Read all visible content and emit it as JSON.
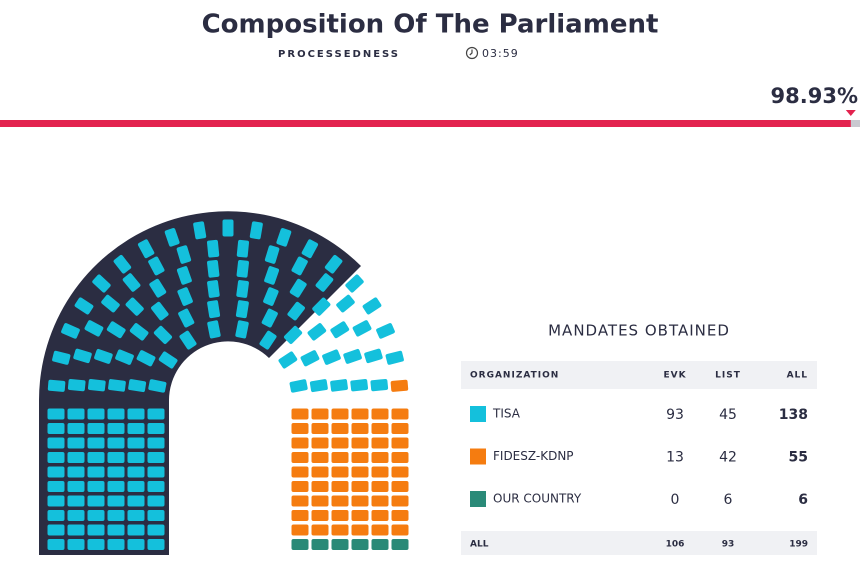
{
  "header": {
    "title": "Composition Of The Parliament",
    "subtitle": "PROCESSEDNESS",
    "time": "03:59"
  },
  "progress": {
    "value": 98.93,
    "label": "98.93%",
    "color": "#e3234f"
  },
  "table": {
    "title": "MANDATES OBTAINED",
    "columns": [
      "ORGANIZATION",
      "EVK",
      "LIST",
      "ALL"
    ],
    "rows": [
      {
        "name": "TISA",
        "color": "#14c0dc",
        "evk": 93,
        "list": 45,
        "all": 138
      },
      {
        "name": "FIDESZ-KDNP",
        "color": "#f57c10",
        "evk": 13,
        "list": 42,
        "all": 55
      },
      {
        "name": "OUR COUNTRY",
        "color": "#2a8a78",
        "evk": 0,
        "list": 6,
        "all": 6
      }
    ],
    "total": {
      "name": "ALL",
      "evk": 106,
      "list": 93,
      "all": 199
    }
  }
}
